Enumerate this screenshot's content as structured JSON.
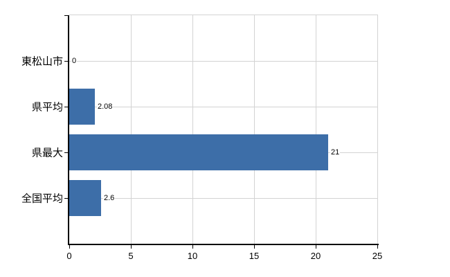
{
  "chart_data": {
    "type": "bar",
    "orientation": "horizontal",
    "title": "",
    "categories": [
      "東松山市",
      "県平均",
      "県最大",
      "全国平均"
    ],
    "values": [
      0,
      2.08,
      21,
      2.6
    ],
    "value_labels": [
      "0",
      "2.08",
      "21",
      "2.6"
    ],
    "xlim": [
      0,
      25
    ],
    "x_ticks": [
      0,
      5,
      10,
      15,
      20,
      25
    ],
    "x_tick_labels": [
      "0",
      "5",
      "10",
      "15",
      "20",
      "25"
    ],
    "grid": "on",
    "legend": "none",
    "colors": {
      "bar": "#3d6ea8",
      "grid_line": "#d3d3d3",
      "axis_line": "#000000",
      "text": "#000000",
      "background": "#ffffff"
    }
  }
}
